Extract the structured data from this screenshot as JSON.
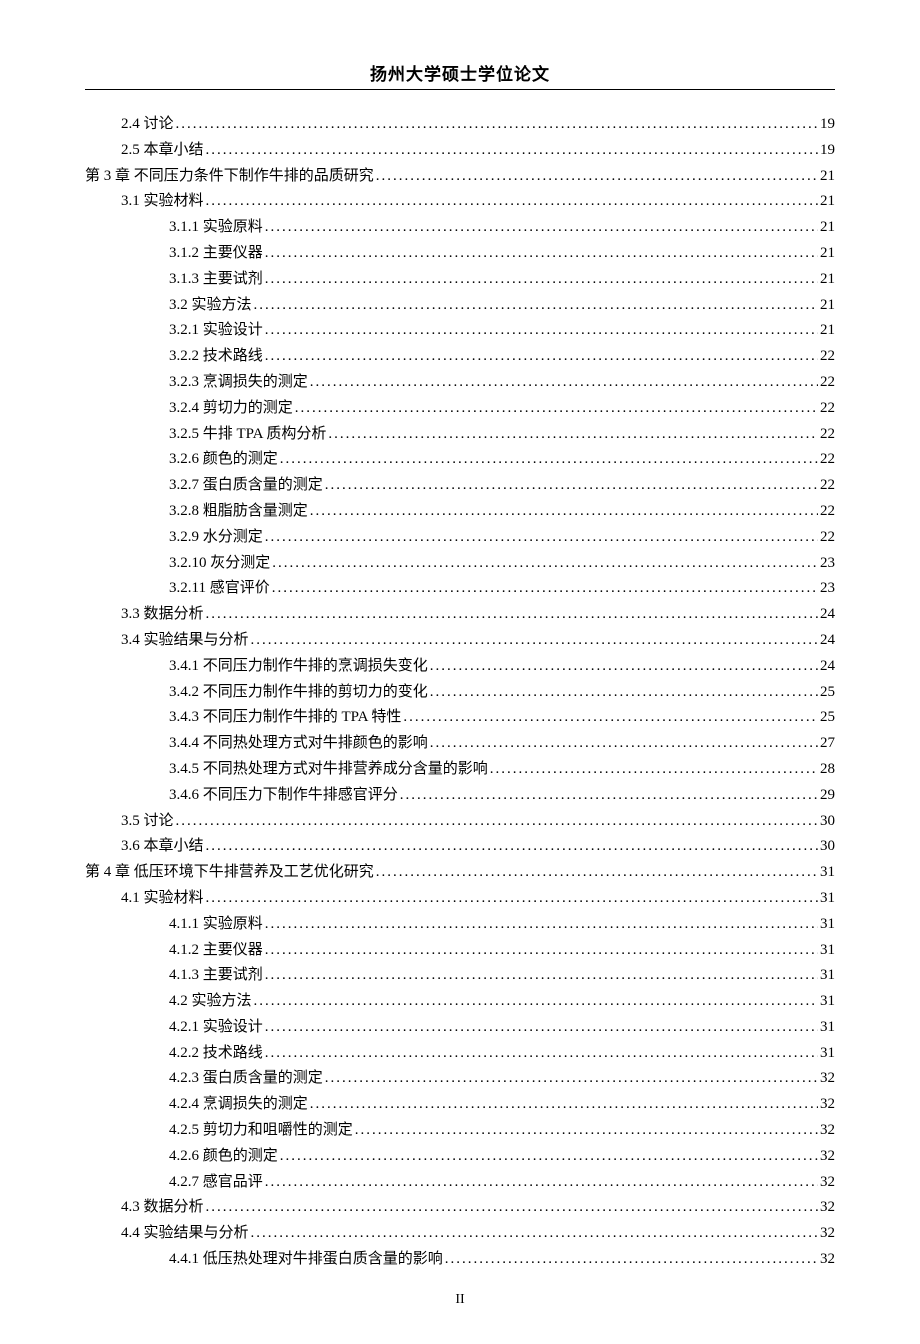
{
  "header": {
    "title": "扬州大学硕士学位论文"
  },
  "toc": {
    "entries": [
      {
        "label": "2.4 讨论",
        "page": "19",
        "indent": 1
      },
      {
        "label": "2.5 本章小结",
        "page": "19",
        "indent": 1
      },
      {
        "label": "第 3 章  不同压力条件下制作牛排的品质研究",
        "page": "21",
        "indent": 0
      },
      {
        "label": "3.1 实验材料",
        "page": "21",
        "indent": 1
      },
      {
        "label": "3.1.1 实验原料",
        "page": "21",
        "indent": 2
      },
      {
        "label": "3.1.2 主要仪器",
        "page": "21",
        "indent": 2
      },
      {
        "label": "3.1.3 主要试剂",
        "page": "21",
        "indent": 2
      },
      {
        "label": "3.2 实验方法",
        "page": "21",
        "indent": 2
      },
      {
        "label": "3.2.1 实验设计",
        "page": "21",
        "indent": 2
      },
      {
        "label": "3.2.2 技术路线",
        "page": "22",
        "indent": 2
      },
      {
        "label": "3.2.3 烹调损失的测定",
        "page": "22",
        "indent": 2
      },
      {
        "label": "3.2.4 剪切力的测定",
        "page": "22",
        "indent": 2
      },
      {
        "label": "3.2.5 牛排 TPA 质构分析 ",
        "page": "22",
        "indent": 2
      },
      {
        "label": "3.2.6 颜色的测定",
        "page": "22",
        "indent": 2
      },
      {
        "label": "3.2.7 蛋白质含量的测定",
        "page": "22",
        "indent": 2
      },
      {
        "label": "3.2.8 粗脂肪含量测定",
        "page": "22",
        "indent": 2
      },
      {
        "label": "3.2.9  水分测定",
        "page": "22",
        "indent": 2
      },
      {
        "label": "3.2.10  灰分测定",
        "page": "23",
        "indent": 2
      },
      {
        "label": "3.2.11  感官评价",
        "page": "23",
        "indent": 2
      },
      {
        "label": "3.3  数据分析",
        "page": "24",
        "indent": 1
      },
      {
        "label": "3.4 实验结果与分析",
        "page": "24",
        "indent": 1
      },
      {
        "label": "3.4.1 不同压力制作牛排的烹调损失变化",
        "page": "24",
        "indent": 2
      },
      {
        "label": "3.4.2 不同压力制作牛排的剪切力的变化",
        "page": "25",
        "indent": 2
      },
      {
        "label": "3.4.3 不同压力制作牛排的 TPA 特性 ",
        "page": "25",
        "indent": 2
      },
      {
        "label": "3.4.4 不同热处理方式对牛排颜色的影响",
        "page": "27",
        "indent": 2
      },
      {
        "label": "3.4.5 不同热处理方式对牛排营养成分含量的影响",
        "page": "28",
        "indent": 2
      },
      {
        "label": "3.4.6 不同压力下制作牛排感官评分",
        "page": "29",
        "indent": 2
      },
      {
        "label": "3.5 讨论",
        "page": "30",
        "indent": 1
      },
      {
        "label": "3.6 本章小结",
        "page": "30",
        "indent": 1
      },
      {
        "label": "第 4 章  低压环境下牛排营养及工艺优化研究",
        "page": "31",
        "indent": 0
      },
      {
        "label": "4.1 实验材料",
        "page": "31",
        "indent": 1
      },
      {
        "label": "4.1.1 实验原料",
        "page": "31",
        "indent": 2
      },
      {
        "label": "4.1.2 主要仪器",
        "page": "31",
        "indent": 2
      },
      {
        "label": "4.1.3 主要试剂",
        "page": "31",
        "indent": 2
      },
      {
        "label": "4.2 实验方法",
        "page": "31",
        "indent": 2
      },
      {
        "label": "4.2.1 实验设计",
        "page": "31",
        "indent": 2
      },
      {
        "label": "4.2.2 技术路线",
        "page": "31",
        "indent": 2
      },
      {
        "label": "4.2.3 蛋白质含量的测定",
        "page": "32",
        "indent": 2
      },
      {
        "label": "4.2.4 烹调损失的测定",
        "page": "32",
        "indent": 2
      },
      {
        "label": "4.2.5 剪切力和咀嚼性的测定",
        "page": "32",
        "indent": 2
      },
      {
        "label": "4.2.6 颜色的测定",
        "page": "32",
        "indent": 2
      },
      {
        "label": "4.2.7 感官品评",
        "page": "32",
        "indent": 2
      },
      {
        "label": "4.3  数据分析",
        "page": "32",
        "indent": 1
      },
      {
        "label": "4.4 实验结果与分析",
        "page": "32",
        "indent": 1
      },
      {
        "label": "4.4.1 低压热处理对牛排蛋白质含量的影响",
        "page": "32",
        "indent": 2
      }
    ]
  },
  "footer": {
    "page_number": "II"
  }
}
